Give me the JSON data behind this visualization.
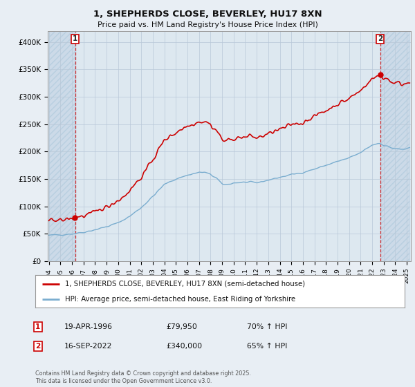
{
  "title": "1, SHEPHERDS CLOSE, BEVERLEY, HU17 8XN",
  "subtitle": "Price paid vs. HM Land Registry's House Price Index (HPI)",
  "legend_property": "1, SHEPHERDS CLOSE, BEVERLEY, HU17 8XN (semi-detached house)",
  "legend_hpi": "HPI: Average price, semi-detached house, East Riding of Yorkshire",
  "annotation1_label": "1",
  "annotation1_date": "19-APR-1996",
  "annotation1_price": "£79,950",
  "annotation1_hpi": "70% ↑ HPI",
  "annotation2_label": "2",
  "annotation2_date": "16-SEP-2022",
  "annotation2_price": "£340,000",
  "annotation2_hpi": "65% ↑ HPI",
  "copyright": "Contains HM Land Registry data © Crown copyright and database right 2025.\nThis data is licensed under the Open Government Licence v3.0.",
  "property_color": "#cc0000",
  "hpi_color": "#7aadcf",
  "background_color": "#e8eef4",
  "plot_bg_color": "#dde8f0",
  "ylim": [
    0,
    420000
  ],
  "yticks": [
    0,
    50000,
    100000,
    150000,
    200000,
    250000,
    300000,
    350000,
    400000
  ],
  "ytick_labels": [
    "£0",
    "£50K",
    "£100K",
    "£150K",
    "£200K",
    "£250K",
    "£300K",
    "£350K",
    "£400K"
  ],
  "sale1_year": 1996.29,
  "sale1_price": 79950,
  "sale2_year": 2022.71,
  "sale2_price": 340000
}
